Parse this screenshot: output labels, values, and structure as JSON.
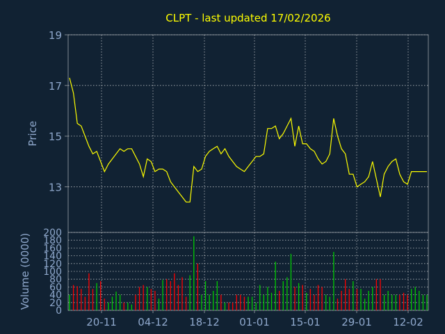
{
  "chart_data": [
    {
      "type": "line",
      "title": "CLPT - last updated 17/02/2026",
      "ylabel": "Price",
      "xlabel": "",
      "ylim": [
        11.2,
        19
      ],
      "y_ticks": [
        13,
        15,
        17,
        19
      ],
      "grid": true,
      "x_tick_labels": [
        "20-11",
        "04-12",
        "18-12",
        "01-01",
        "15-01",
        "29-01",
        "12-02"
      ],
      "series": [
        {
          "values": [
            17.3,
            16.7,
            15.5,
            15.4,
            15.0,
            14.6,
            14.3,
            14.4,
            14.0,
            13.6,
            13.9,
            14.1,
            14.3,
            14.5,
            14.4,
            14.5,
            14.5,
            14.2,
            13.9,
            13.4,
            14.1,
            14.0,
            13.6,
            13.7,
            13.7,
            13.6,
            13.2,
            13.0,
            12.8,
            12.6,
            12.4,
            12.4,
            13.8,
            13.6,
            13.7,
            14.2,
            14.4,
            14.5,
            14.6,
            14.3,
            14.5,
            14.2,
            14.0,
            13.8,
            13.7,
            13.6,
            13.8,
            14.0,
            14.2,
            14.2,
            14.3,
            15.3,
            15.3,
            15.4,
            14.9,
            15.1,
            15.4,
            15.7,
            14.6,
            15.4,
            14.7,
            14.7,
            14.5,
            14.4,
            14.1,
            13.9,
            14.0,
            14.3,
            15.7,
            15.0,
            14.5,
            14.3,
            13.5,
            13.5,
            13.0,
            13.1,
            13.2,
            13.4,
            14.0,
            13.3,
            12.6,
            13.5,
            13.8,
            14.0,
            14.1,
            13.5,
            13.2,
            13.1,
            13.6,
            13.6,
            13.6,
            13.6,
            13.6
          ],
          "color": "#ffff00"
        }
      ]
    },
    {
      "type": "bar",
      "ylabel": "Volume (0000)",
      "ylim": [
        0,
        200
      ],
      "y_ticks": [
        0,
        20,
        40,
        60,
        80,
        100,
        120,
        140,
        160,
        180,
        200
      ],
      "grid": true,
      "x_tick_labels": [
        "20-11",
        "04-12",
        "18-12",
        "01-01",
        "15-01",
        "29-01",
        "12-02"
      ],
      "series": [
        {
          "values": [
            40,
            65,
            62,
            55,
            35,
            95,
            55,
            70,
            75,
            30,
            20,
            35,
            48,
            40,
            20,
            20,
            15,
            40,
            60,
            65,
            60,
            55,
            50,
            30,
            78,
            80,
            75,
            95,
            65,
            85,
            35,
            90,
            190,
            120,
            40,
            75,
            40,
            50,
            75,
            40,
            20,
            20,
            20,
            40,
            40,
            35,
            35,
            35,
            20,
            65,
            40,
            60,
            45,
            125,
            50,
            75,
            85,
            145,
            60,
            70,
            65,
            45,
            55,
            40,
            65,
            60,
            40,
            35,
            150,
            30,
            50,
            80,
            55,
            75,
            55,
            55,
            30,
            50,
            60,
            80,
            80,
            40,
            50,
            40,
            40,
            40,
            45,
            40,
            55,
            60,
            50,
            40,
            40
          ],
          "up_color": "#00cc00",
          "down_color": "#ff0000"
        }
      ]
    }
  ],
  "colors": {
    "background": "#112233",
    "axis": "#808890",
    "grid": "#b8bcc0",
    "tick_label": "#8fa8cc",
    "title": "#ffff00"
  }
}
